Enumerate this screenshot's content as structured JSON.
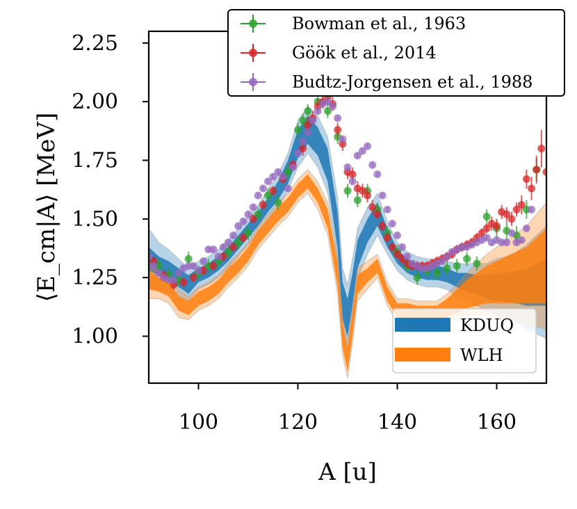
{
  "chart_data": {
    "type": "scatter",
    "title": "",
    "xlabel": "A [u]",
    "ylabel": "⟨E_cm|A⟩ [MeV]",
    "xlim": [
      90,
      170
    ],
    "ylim": [
      0.8,
      2.3
    ],
    "x_ticks": [
      100,
      120,
      140,
      160
    ],
    "y_ticks": [
      1.0,
      1.25,
      1.5,
      1.75,
      2.0,
      2.25
    ],
    "x_tick_labels": [
      "100",
      "120",
      "140",
      "160"
    ],
    "y_tick_labels": [
      "1.00",
      "1.25",
      "1.50",
      "1.75",
      "2.00",
      "2.25"
    ],
    "legend_top": {
      "placement": "top-right (outside)",
      "entries": [
        "Bowman et al., 1963",
        "Göök et al., 2014",
        "Budtz-Jorgensen et al., 1988"
      ]
    },
    "legend_bottom": {
      "placement": "lower-right",
      "entries": [
        "KDUQ",
        "WLH"
      ]
    },
    "bands": [
      {
        "name": "KDUQ",
        "color": "#1f77b4",
        "x": [
          90,
          92,
          94,
          96,
          98,
          100,
          102,
          104,
          106,
          108,
          110,
          112,
          114,
          116,
          118,
          120,
          122,
          124,
          126,
          128,
          129,
          130,
          131,
          132,
          134,
          136,
          138,
          140,
          142,
          144,
          146,
          148,
          150,
          152,
          154,
          156,
          158,
          160,
          162,
          164,
          166,
          168,
          170
        ],
        "mid": [
          1.33,
          1.3,
          1.28,
          1.25,
          1.22,
          1.26,
          1.28,
          1.31,
          1.35,
          1.4,
          1.45,
          1.5,
          1.56,
          1.62,
          1.7,
          1.82,
          1.88,
          1.83,
          1.73,
          1.45,
          1.15,
          1.08,
          1.2,
          1.35,
          1.45,
          1.52,
          1.42,
          1.34,
          1.3,
          1.28,
          1.27,
          1.27,
          1.26,
          1.24,
          1.23,
          1.22,
          1.21,
          1.21,
          1.21,
          1.21,
          1.21,
          1.22,
          1.23
        ],
        "inner": [
          0.05,
          0.04,
          0.04,
          0.04,
          0.04,
          0.03,
          0.03,
          0.03,
          0.03,
          0.03,
          0.03,
          0.03,
          0.03,
          0.04,
          0.05,
          0.06,
          0.06,
          0.06,
          0.07,
          0.08,
          0.08,
          0.08,
          0.07,
          0.06,
          0.05,
          0.05,
          0.04,
          0.03,
          0.03,
          0.03,
          0.03,
          0.03,
          0.03,
          0.03,
          0.04,
          0.04,
          0.05,
          0.06,
          0.06,
          0.07,
          0.08,
          0.09,
          0.1
        ],
        "outer": [
          0.13,
          0.1,
          0.09,
          0.08,
          0.07,
          0.06,
          0.06,
          0.06,
          0.06,
          0.06,
          0.06,
          0.06,
          0.07,
          0.07,
          0.08,
          0.1,
          0.1,
          0.11,
          0.12,
          0.14,
          0.14,
          0.14,
          0.13,
          0.11,
          0.1,
          0.09,
          0.07,
          0.06,
          0.06,
          0.06,
          0.06,
          0.06,
          0.06,
          0.07,
          0.08,
          0.09,
          0.1,
          0.12,
          0.13,
          0.15,
          0.18,
          0.21,
          0.24
        ]
      },
      {
        "name": "WLH",
        "color": "#ff7f0e",
        "x": [
          90,
          92,
          94,
          96,
          98,
          100,
          102,
          104,
          106,
          108,
          110,
          112,
          114,
          116,
          118,
          120,
          122,
          124,
          126,
          128,
          129,
          130,
          131,
          132,
          134,
          136,
          138,
          140,
          142,
          144,
          146,
          148,
          150,
          152,
          154,
          156,
          158,
          160,
          162,
          164,
          166,
          168,
          170
        ],
        "mid": [
          1.24,
          1.22,
          1.2,
          1.14,
          1.12,
          1.16,
          1.18,
          1.21,
          1.26,
          1.3,
          1.35,
          1.42,
          1.47,
          1.52,
          1.56,
          1.62,
          1.66,
          1.6,
          1.5,
          1.26,
          1.0,
          0.9,
          1.05,
          1.22,
          1.26,
          1.3,
          1.18,
          1.11,
          1.11,
          1.1,
          1.1,
          1.1,
          1.12,
          1.15,
          1.18,
          1.2,
          1.22,
          1.23,
          1.24,
          1.25,
          1.26,
          1.28,
          1.3
        ],
        "inner": [
          0.04,
          0.03,
          0.03,
          0.03,
          0.03,
          0.03,
          0.03,
          0.03,
          0.03,
          0.03,
          0.03,
          0.03,
          0.03,
          0.03,
          0.03,
          0.03,
          0.03,
          0.03,
          0.04,
          0.05,
          0.05,
          0.05,
          0.05,
          0.04,
          0.03,
          0.03,
          0.03,
          0.03,
          0.03,
          0.03,
          0.03,
          0.03,
          0.04,
          0.05,
          0.06,
          0.07,
          0.08,
          0.09,
          0.1,
          0.11,
          0.12,
          0.14,
          0.16
        ],
        "outer": [
          0.08,
          0.06,
          0.06,
          0.06,
          0.05,
          0.05,
          0.05,
          0.05,
          0.05,
          0.05,
          0.05,
          0.05,
          0.05,
          0.05,
          0.05,
          0.05,
          0.05,
          0.06,
          0.07,
          0.08,
          0.08,
          0.08,
          0.08,
          0.07,
          0.06,
          0.05,
          0.05,
          0.05,
          0.05,
          0.05,
          0.05,
          0.05,
          0.06,
          0.07,
          0.09,
          0.11,
          0.13,
          0.15,
          0.17,
          0.19,
          0.21,
          0.24,
          0.27
        ]
      }
    ],
    "series": [
      {
        "name": "Bowman et al., 1963",
        "color": "#2ca02c",
        "x": [
          92,
          94,
          96,
          98,
          100,
          102,
          104,
          106,
          108,
          110,
          112,
          114,
          116,
          118,
          120,
          121,
          122,
          124,
          126,
          128,
          130,
          132,
          134,
          136,
          138,
          140,
          142,
          144,
          146,
          148,
          150,
          152,
          154,
          156,
          158,
          160,
          162,
          164,
          166,
          168
        ],
        "y": [
          1.3,
          1.26,
          1.24,
          1.33,
          1.27,
          1.3,
          1.32,
          1.36,
          1.4,
          1.44,
          1.52,
          1.6,
          1.57,
          1.7,
          1.88,
          1.92,
          1.96,
          2.0,
          1.96,
          1.85,
          1.62,
          1.58,
          1.62,
          1.54,
          1.44,
          1.36,
          1.3,
          1.25,
          1.28,
          1.27,
          1.29,
          1.3,
          1.33,
          1.31,
          1.51,
          1.46,
          1.45,
          1.43,
          1.54,
          1.71
        ],
        "err": [
          0.03,
          0.03,
          0.03,
          0.03,
          0.03,
          0.03,
          0.03,
          0.03,
          0.03,
          0.03,
          0.03,
          0.03,
          0.03,
          0.03,
          0.03,
          0.03,
          0.03,
          0.03,
          0.03,
          0.03,
          0.03,
          0.03,
          0.03,
          0.03,
          0.03,
          0.03,
          0.03,
          0.03,
          0.03,
          0.03,
          0.03,
          0.03,
          0.03,
          0.03,
          0.03,
          0.04,
          0.04,
          0.04,
          0.04,
          0.05
        ]
      },
      {
        "name": "Göök et al., 2014",
        "color": "#d62728",
        "x": [
          91,
          93,
          95,
          97,
          99,
          101,
          103,
          105,
          107,
          109,
          111,
          113,
          115,
          117,
          119,
          121,
          122,
          123,
          124,
          125,
          126,
          127,
          128,
          129,
          130,
          131,
          132,
          133,
          134,
          135,
          136,
          137,
          138,
          139,
          140,
          141,
          142,
          143,
          144,
          145,
          146,
          147,
          148,
          149,
          150,
          151,
          152,
          153,
          154,
          155,
          156,
          157,
          158,
          159,
          160,
          161,
          162,
          163,
          164,
          165,
          166,
          167,
          168,
          169,
          170
        ],
        "y": [
          1.32,
          1.26,
          1.22,
          1.23,
          1.25,
          1.28,
          1.3,
          1.34,
          1.38,
          1.42,
          1.5,
          1.56,
          1.62,
          1.67,
          1.73,
          1.8,
          1.9,
          1.93,
          1.98,
          2.0,
          2.02,
          1.99,
          1.88,
          1.82,
          1.7,
          1.69,
          1.63,
          1.62,
          1.6,
          1.55,
          1.52,
          1.47,
          1.42,
          1.38,
          1.35,
          1.33,
          1.31,
          1.3,
          1.3,
          1.3,
          1.3,
          1.31,
          1.32,
          1.33,
          1.34,
          1.35,
          1.37,
          1.38,
          1.39,
          1.4,
          1.42,
          1.44,
          1.46,
          1.48,
          1.47,
          1.53,
          1.52,
          1.5,
          1.54,
          1.56,
          1.67,
          1.63,
          1.71,
          1.8,
          1.7
        ],
        "err": [
          0.02,
          0.02,
          0.02,
          0.02,
          0.02,
          0.02,
          0.02,
          0.02,
          0.02,
          0.02,
          0.02,
          0.02,
          0.02,
          0.02,
          0.02,
          0.03,
          0.03,
          0.03,
          0.03,
          0.03,
          0.03,
          0.03,
          0.03,
          0.03,
          0.03,
          0.03,
          0.03,
          0.03,
          0.03,
          0.03,
          0.02,
          0.02,
          0.02,
          0.02,
          0.02,
          0.02,
          0.02,
          0.02,
          0.02,
          0.02,
          0.02,
          0.02,
          0.02,
          0.02,
          0.02,
          0.02,
          0.02,
          0.02,
          0.02,
          0.02,
          0.02,
          0.02,
          0.02,
          0.03,
          0.03,
          0.03,
          0.03,
          0.03,
          0.03,
          0.04,
          0.04,
          0.05,
          0.06,
          0.08,
          0.1
        ]
      },
      {
        "name": "Budtz-Jorgensen et al., 1988",
        "color": "#9467bd",
        "x": [
          90,
          91,
          92,
          93,
          94,
          95,
          96,
          97,
          98,
          99,
          100,
          101,
          102,
          103,
          104,
          105,
          106,
          107,
          108,
          109,
          110,
          111,
          112,
          113,
          114,
          115,
          116,
          117,
          118,
          119,
          120,
          121,
          122,
          123,
          124,
          125,
          126,
          127,
          128,
          129,
          130,
          131,
          132,
          133,
          134,
          135,
          136,
          137,
          138,
          139,
          140,
          141,
          142,
          143,
          144,
          145,
          146,
          147,
          148,
          149,
          150,
          151,
          152,
          153,
          154,
          155,
          156,
          157,
          158,
          159,
          160,
          161,
          162,
          163,
          164,
          165,
          166,
          167
        ],
        "y": [
          1.34,
          1.3,
          1.27,
          1.25,
          1.24,
          1.24,
          1.27,
          1.29,
          1.3,
          1.3,
          1.28,
          1.32,
          1.37,
          1.37,
          1.34,
          1.38,
          1.4,
          1.43,
          1.47,
          1.49,
          1.52,
          1.55,
          1.6,
          1.63,
          1.66,
          1.68,
          1.7,
          1.68,
          1.63,
          1.72,
          1.78,
          1.83,
          1.87,
          1.92,
          1.96,
          1.99,
          2.0,
          1.98,
          1.93,
          1.84,
          1.72,
          1.66,
          1.77,
          1.79,
          1.81,
          1.73,
          1.69,
          1.6,
          1.54,
          1.48,
          1.43,
          1.38,
          1.34,
          1.31,
          1.3,
          1.29,
          1.29,
          1.3,
          1.31,
          1.32,
          1.34,
          1.36,
          1.37,
          1.38,
          1.38,
          1.39,
          1.4,
          1.41,
          1.42,
          1.4,
          1.41,
          1.4,
          1.4,
          1.44,
          1.4,
          1.41,
          1.46,
          1.54
        ],
        "err": [
          0.01,
          0.01,
          0.01,
          0.01,
          0.01,
          0.01,
          0.01,
          0.01,
          0.01,
          0.01,
          0.01,
          0.01,
          0.01,
          0.01,
          0.01,
          0.01,
          0.01,
          0.01,
          0.01,
          0.01,
          0.01,
          0.01,
          0.01,
          0.01,
          0.01,
          0.01,
          0.01,
          0.01,
          0.01,
          0.01,
          0.01,
          0.01,
          0.01,
          0.01,
          0.01,
          0.01,
          0.01,
          0.01,
          0.01,
          0.01,
          0.01,
          0.01,
          0.01,
          0.01,
          0.01,
          0.01,
          0.01,
          0.01,
          0.01,
          0.01,
          0.01,
          0.01,
          0.01,
          0.01,
          0.01,
          0.01,
          0.01,
          0.01,
          0.01,
          0.01,
          0.01,
          0.01,
          0.01,
          0.01,
          0.01,
          0.01,
          0.01,
          0.01,
          0.01,
          0.01,
          0.01,
          0.01,
          0.01,
          0.01,
          0.01,
          0.01,
          0.01,
          0.01
        ]
      }
    ]
  }
}
